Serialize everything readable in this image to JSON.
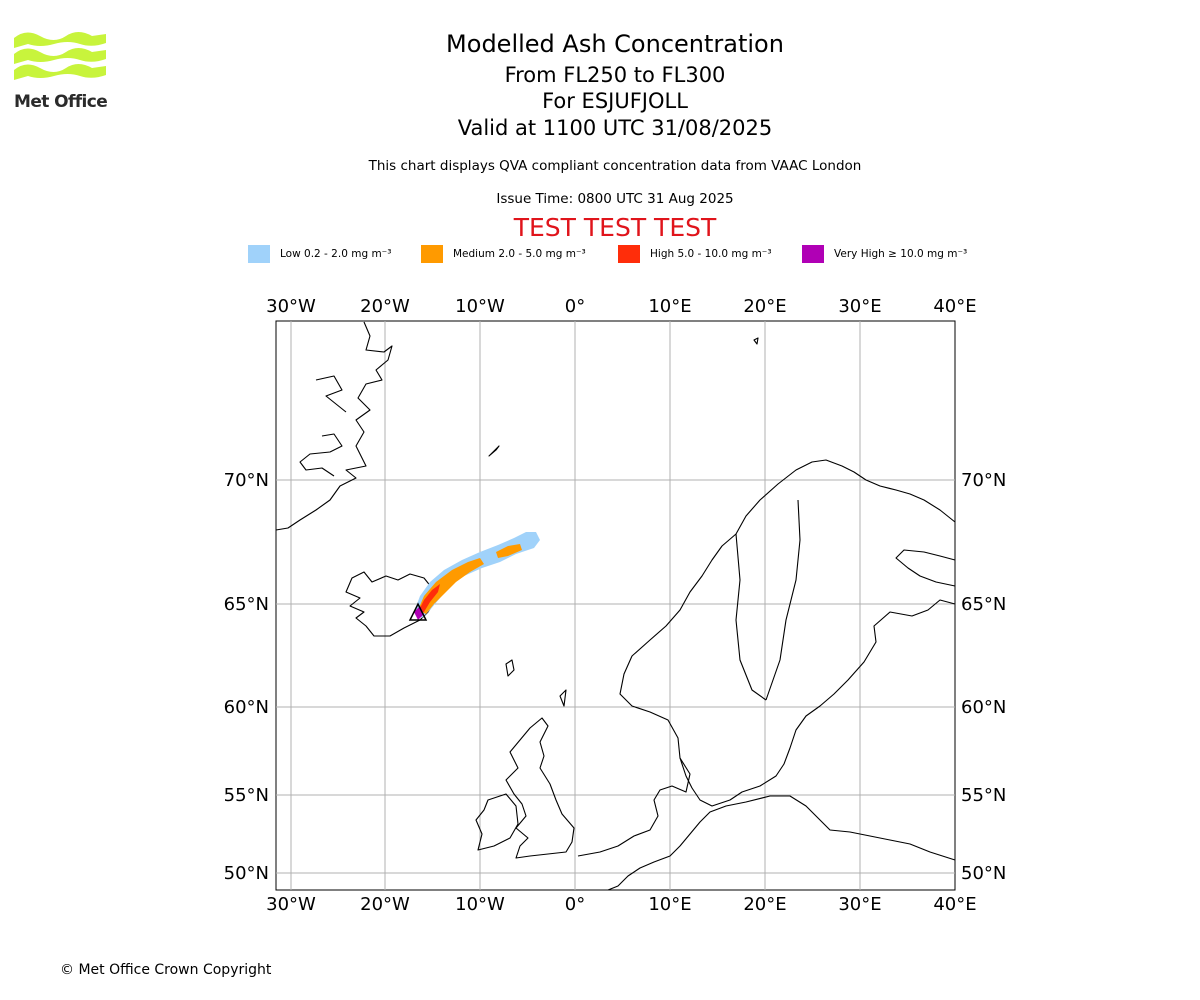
{
  "logo": {
    "text": "Met Office",
    "icon": "met-office-wave-logo",
    "color": "#c8f43c"
  },
  "header": {
    "title": "Modelled Ash Concentration",
    "levels": "From FL250 to FL300",
    "volcano": "For ESJUFJOLL",
    "valid": "Valid at 1100 UTC 31/08/2025",
    "note": "This chart displays QVA compliant concentration data from VAAC London",
    "issue_time": "Issue Time: 0800 UTC 31 Aug 2025",
    "test_banner": "TEST TEST TEST",
    "test_color": "#e0141b"
  },
  "legend": [
    {
      "label": "Low 0.2 - 2.0 mg m⁻³",
      "color": "#a0d2fa"
    },
    {
      "label": "Medium 2.0 - 5.0 mg m⁻³",
      "color": "#ff9a00"
    },
    {
      "label": "High 5.0 - 10.0 mg m⁻³",
      "color": "#ff2d0a"
    },
    {
      "label": "Very High  ≥  10.0 mg m⁻³",
      "color": "#b000b5"
    }
  ],
  "map": {
    "lon_ticks": [
      "30°W",
      "20°W",
      "10°W",
      "0°",
      "10°E",
      "20°E",
      "30°E",
      "40°E"
    ],
    "lat_ticks": [
      "70°N",
      "65°N",
      "60°N",
      "55°N",
      "50°N"
    ],
    "grid_color": "#b0b0b0",
    "volcano_marker": "triangle"
  },
  "footer": {
    "copyright": "© Met Office Crown Copyright"
  }
}
